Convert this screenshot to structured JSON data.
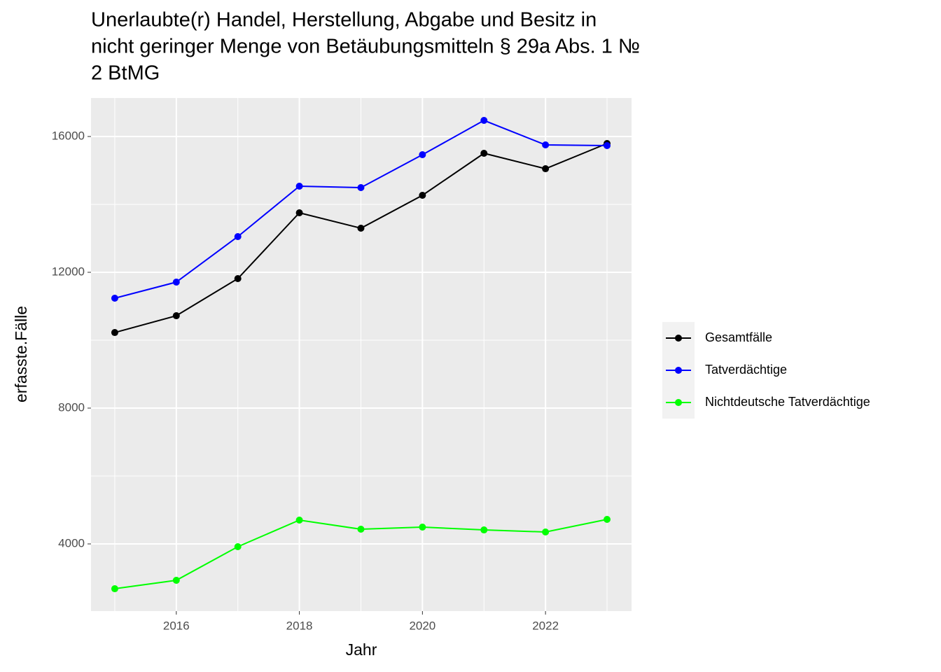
{
  "chart_data": {
    "type": "line",
    "title": [
      "Unerlaubte(r) Handel, Herstellung, Abgabe und Besitz in",
      "nicht geringer Menge von Betäubungsmitteln § 29a Abs. 1 №",
      "2 BtMG"
    ],
    "x_label": "Jahr",
    "y_label": "erfasste.Fälle",
    "x": [
      2015,
      2016,
      2017,
      2018,
      2019,
      2020,
      2021,
      2022,
      2023
    ],
    "series": [
      {
        "name": "Gesamtfälle",
        "color": "#000000",
        "values": [
          10226,
          10721,
          11814,
          13753,
          13299,
          14268,
          15505,
          15051,
          15794
        ]
      },
      {
        "name": "Tatverdächtige",
        "color": "#0000ff",
        "values": [
          11237,
          11711,
          13052,
          14536,
          14495,
          15464,
          16474,
          15753,
          15732
        ]
      },
      {
        "name": "Nichtdeutsche Tatverdächtige",
        "color": "#00ff00",
        "values": [
          2680,
          2928,
          3918,
          4701,
          4433,
          4495,
          4412,
          4351,
          4722
        ]
      }
    ],
    "xlim": [
      2014.614,
      2023.398
    ],
    "ylim": [
      2021,
      17134
    ],
    "xticks": [
      2016,
      2018,
      2020,
      2022
    ],
    "yticks": [
      4000,
      8000,
      12000,
      16000
    ],
    "grid": true,
    "legend_position": "right"
  }
}
